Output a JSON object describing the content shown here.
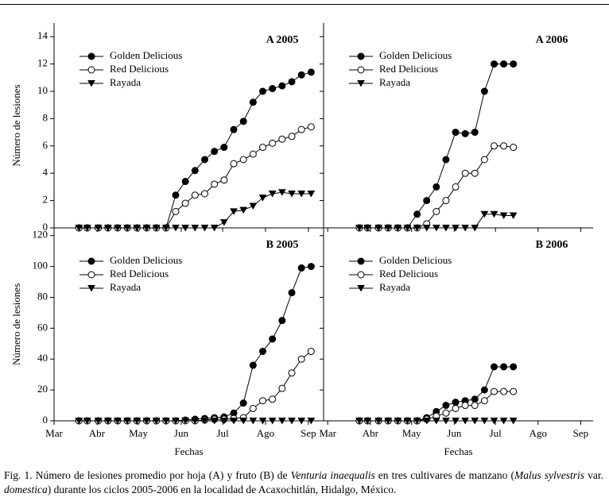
{
  "chart_data": [
    {
      "type": "line",
      "title": "A 2005",
      "ylabel": "Número de lesiones",
      "x": [
        78,
        84,
        92,
        99,
        106,
        113,
        120,
        127,
        134,
        141,
        148,
        155,
        162,
        169,
        176,
        183,
        190,
        197,
        204,
        211,
        218,
        225,
        232,
        239,
        246
      ],
      "series": [
        {
          "name": "Golden Delicious",
          "color": "#000000",
          "marker": "circle-filled",
          "values": [
            0,
            0,
            0,
            0,
            0,
            0,
            0,
            0,
            0,
            0,
            2.4,
            3.4,
            4.2,
            5.0,
            5.6,
            5.9,
            7.2,
            7.8,
            9.2,
            10.0,
            10.2,
            10.4,
            10.7,
            11.2,
            11.4
          ]
        },
        {
          "name": "Red Delicious",
          "color": "#000000",
          "marker": "circle-open",
          "values": [
            0,
            0,
            0,
            0,
            0,
            0,
            0,
            0,
            0,
            0,
            1.2,
            1.8,
            2.4,
            2.5,
            3.2,
            3.5,
            4.7,
            5.0,
            5.4,
            5.9,
            6.2,
            6.5,
            6.7,
            7.2,
            7.4
          ]
        },
        {
          "name": "Rayada",
          "color": "#000000",
          "marker": "triangle-down",
          "values": [
            0,
            0,
            0,
            0,
            0,
            0,
            0,
            0,
            0,
            0,
            0,
            0,
            0,
            0,
            0,
            0.4,
            1.2,
            1.3,
            1.6,
            2.2,
            2.5,
            2.6,
            2.5,
            2.5,
            2.5
          ]
        }
      ],
      "xlim": [
        60,
        255
      ],
      "ylim": [
        0,
        15
      ],
      "xticks": [
        60,
        91,
        121,
        152,
        182,
        213,
        244
      ],
      "yticks": [
        0,
        2,
        4,
        6,
        8,
        10,
        12,
        14
      ]
    },
    {
      "type": "line",
      "title": "A 2006",
      "x": [
        83,
        89,
        97,
        104,
        111,
        118,
        125,
        132,
        139,
        146,
        153,
        160,
        167,
        174,
        181,
        188,
        195
      ],
      "series": [
        {
          "name": "Golden Delicious",
          "color": "#000000",
          "marker": "circle-filled",
          "values": [
            0,
            0,
            0,
            0,
            0,
            0,
            1.0,
            2.0,
            3.0,
            5.0,
            7.0,
            6.9,
            7.0,
            10.0,
            12.0,
            12.0,
            12.0
          ]
        },
        {
          "name": "Red Delicious",
          "color": "#000000",
          "marker": "circle-open",
          "values": [
            0,
            0,
            0,
            0,
            0,
            0,
            0,
            0.3,
            1.2,
            2.0,
            3.0,
            4.0,
            4.0,
            5.0,
            6.0,
            6.0,
            5.9
          ]
        },
        {
          "name": "Rayada",
          "color": "#000000",
          "marker": "triangle-down",
          "values": [
            0,
            0,
            0,
            0,
            0,
            0,
            0,
            0,
            0,
            0,
            0,
            0,
            0,
            1.0,
            1.0,
            0.9,
            0.9
          ]
        }
      ],
      "xlim": [
        57,
        253
      ],
      "ylim": [
        0,
        15
      ],
      "xticks": [
        60,
        91,
        121,
        152,
        182,
        213,
        244
      ],
      "yticks": [
        0,
        2,
        4,
        6,
        8,
        10,
        12,
        14
      ]
    },
    {
      "type": "line",
      "title": "B 2005",
      "ylabel": "Número de lesiones",
      "xlabel": "Fechas",
      "x": [
        78,
        84,
        92,
        99,
        106,
        113,
        120,
        127,
        134,
        141,
        148,
        155,
        162,
        169,
        176,
        183,
        190,
        197,
        204,
        211,
        218,
        225,
        232,
        239,
        246
      ],
      "series": [
        {
          "name": "Golden Delicious",
          "color": "#000000",
          "marker": "circle-filled",
          "values": [
            0,
            0,
            0,
            0,
            0,
            0,
            0,
            0,
            0,
            0,
            0,
            0.5,
            1,
            1.5,
            2,
            2.5,
            5,
            11.5,
            36,
            45,
            53,
            65,
            83,
            99,
            100
          ]
        },
        {
          "name": "Red Delicious",
          "color": "#000000",
          "marker": "circle-open",
          "values": [
            0,
            0,
            0,
            0,
            0,
            0,
            0,
            0,
            0,
            0,
            0,
            0,
            0,
            0.5,
            1,
            1,
            1.5,
            2,
            8,
            13,
            14,
            21,
            31,
            40,
            45
          ]
        },
        {
          "name": "Rayada",
          "color": "#000000",
          "marker": "triangle-down",
          "values": [
            0,
            0,
            0,
            0,
            0,
            0,
            0,
            0,
            0,
            0,
            0,
            0,
            0,
            0,
            0,
            0,
            0,
            0,
            0,
            0,
            0,
            0,
            0,
            0,
            0
          ]
        }
      ],
      "xlim": [
        60,
        255
      ],
      "ylim": [
        0,
        125
      ],
      "xticks": [
        {
          "value": 60,
          "label": "Mar"
        },
        {
          "value": 91,
          "label": "Abr"
        },
        {
          "value": 121,
          "label": "May"
        },
        {
          "value": 152,
          "label": "Jun"
        },
        {
          "value": 182,
          "label": "Jul"
        },
        {
          "value": 213,
          "label": "Ago"
        },
        {
          "value": 244,
          "label": "Sep"
        }
      ],
      "yticks": [
        0,
        20,
        40,
        60,
        80,
        100,
        120
      ]
    },
    {
      "type": "line",
      "title": "B 2006",
      "xlabel": "Fechas",
      "x": [
        83,
        89,
        97,
        104,
        111,
        118,
        125,
        132,
        139,
        146,
        153,
        160,
        167,
        174,
        181,
        188,
        195
      ],
      "series": [
        {
          "name": "Golden Delicious",
          "color": "#000000",
          "marker": "circle-filled",
          "values": [
            0,
            0,
            0,
            0,
            0,
            0,
            0,
            2,
            6,
            10,
            12,
            13,
            14,
            20,
            35,
            35,
            35
          ]
        },
        {
          "name": "Red Delicious",
          "color": "#000000",
          "marker": "circle-open",
          "values": [
            0,
            0,
            0,
            0,
            0,
            0,
            0,
            1,
            3,
            5,
            8,
            10,
            10,
            13,
            19,
            19,
            19
          ]
        },
        {
          "name": "Rayada",
          "color": "#000000",
          "marker": "triangle-down",
          "values": [
            0,
            0,
            0,
            0,
            0,
            0,
            0,
            0,
            0,
            0,
            0,
            0,
            0,
            0,
            0,
            0,
            0
          ]
        }
      ],
      "xlim": [
        57,
        253
      ],
      "ylim": [
        0,
        125
      ],
      "xticks": [
        {
          "value": 60,
          "label": "Mar"
        },
        {
          "value": 91,
          "label": "Abr"
        },
        {
          "value": 121,
          "label": "May"
        },
        {
          "value": 152,
          "label": "Jun"
        },
        {
          "value": 182,
          "label": "Jul"
        },
        {
          "value": 213,
          "label": "Ago"
        },
        {
          "value": 244,
          "label": "Sep"
        }
      ],
      "yticks": [
        0,
        20,
        40,
        60,
        80,
        100,
        120
      ]
    }
  ],
  "caption": [
    "Fig. 1. Número de lesiones promedio por hoja (A) y fruto (B) de ",
    "Venturia inaequalis",
    " en tres cultivares de manzano (",
    "Malus sylvestris",
    " var. ",
    "domestica",
    ") durante los ciclos 2005-2006 en la localidad de Acaxochitlán, Hidalgo, México."
  ]
}
